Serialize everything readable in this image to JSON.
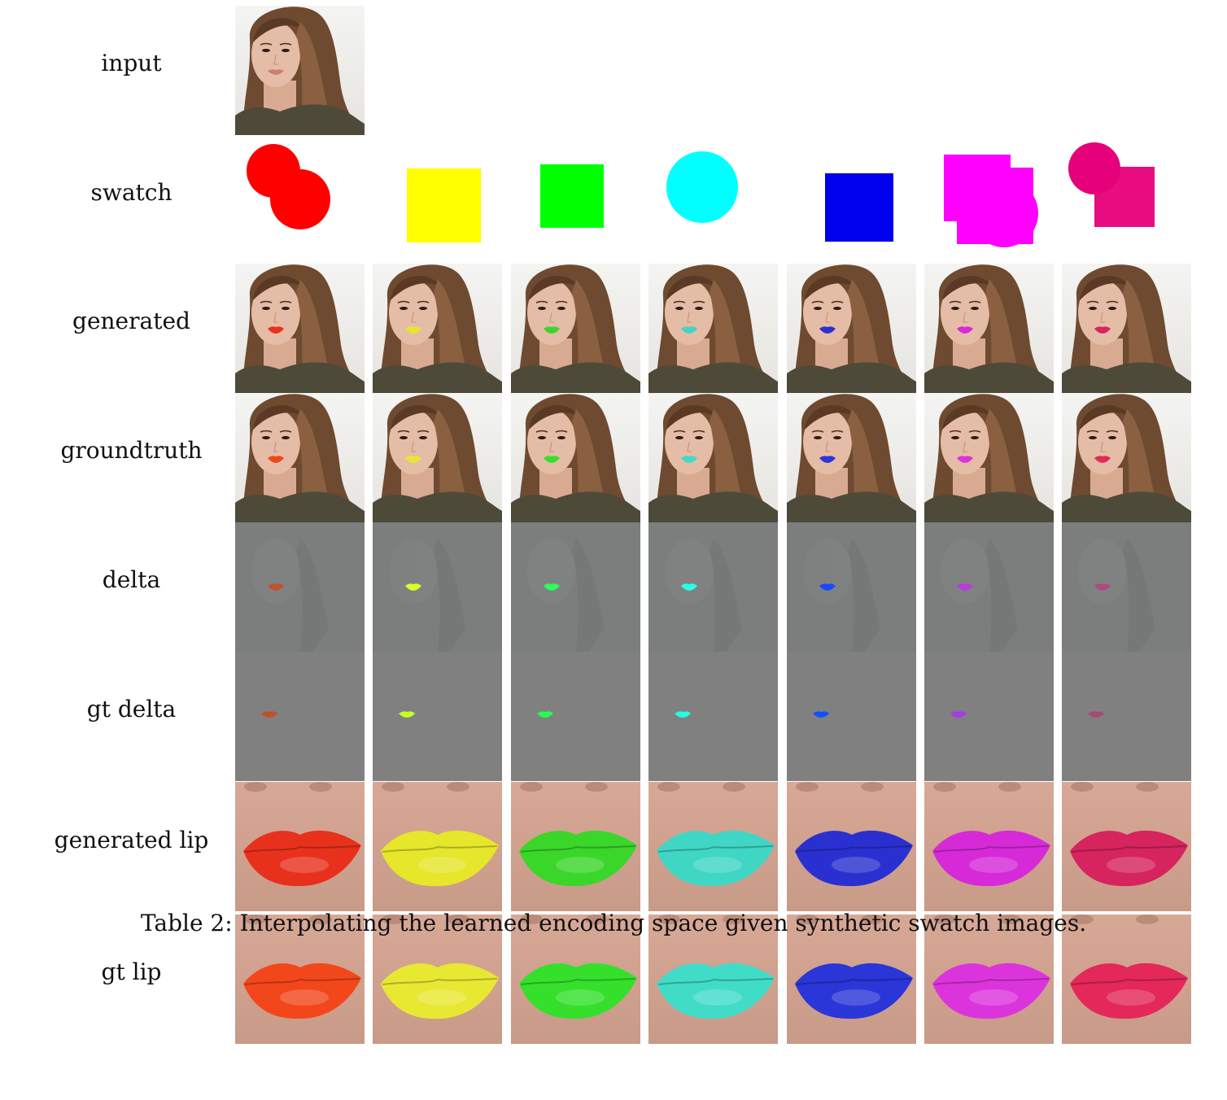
{
  "rows": [
    {
      "key": "input",
      "label": "input"
    },
    {
      "key": "swatch",
      "label": "swatch"
    },
    {
      "key": "generated",
      "label": "generated"
    },
    {
      "key": "groundtruth",
      "label": "groundtruth"
    },
    {
      "key": "delta",
      "label": "delta"
    },
    {
      "key": "gt_delta",
      "label": "gt delta"
    },
    {
      "key": "generated_lip",
      "label": "generated lip"
    },
    {
      "key": "gt_lip",
      "label": "gt lip"
    }
  ],
  "swatches": [
    {
      "color": "#ff0000",
      "shape": "two-circles"
    },
    {
      "color": "#ffff00",
      "shape": "square"
    },
    {
      "color": "#00ff00",
      "shape": "square"
    },
    {
      "color": "#00ffff",
      "shape": "circle"
    },
    {
      "color": "#0000ee",
      "shape": "square"
    },
    {
      "color": "#ff00ff",
      "shape": "squares-and-circle"
    },
    {
      "color": "#e6007a",
      "shape": "circle-and-square"
    }
  ],
  "lip_colors": {
    "generated": [
      "#e8311c",
      "#e6e62a",
      "#3ad62a",
      "#3fd6c4",
      "#2a30d0",
      "#d62ad8",
      "#d6245e"
    ],
    "groundtruth": [
      "#f2471a",
      "#e8e833",
      "#34e02c",
      "#40dcc8",
      "#2a36d8",
      "#dc34dc",
      "#e4285a"
    ],
    "delta": [
      "#c0522e",
      "#d8ff2a",
      "#2aff5a",
      "#2affe8",
      "#1a4aff",
      "#b83ae0",
      "#b04a80"
    ],
    "gt_delta": [
      "#c0502a",
      "#c8ff22",
      "#22ff4a",
      "#22ffe4",
      "#1050ff",
      "#a83ae8",
      "#a84a7a"
    ]
  },
  "caption": "Table 2: Interpolating the learned encoding space given synthetic swatch images."
}
